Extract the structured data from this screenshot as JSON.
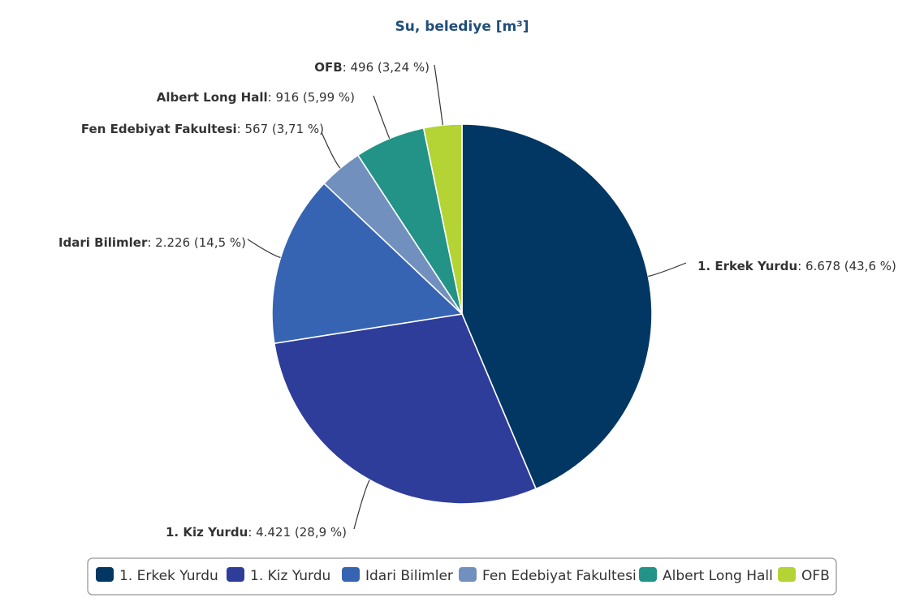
{
  "chart_data": {
    "type": "pie",
    "title": "Su, belediye [m³]",
    "slices": [
      {
        "name": "1. Erkek Yurdu",
        "value": 6678,
        "value_text": "6.678",
        "percent_text": "43,6 %",
        "color": "#023764"
      },
      {
        "name": "1. Kiz Yurdu",
        "value": 4421,
        "value_text": "4.421",
        "percent_text": "28,9 %",
        "color": "#2e3d9a"
      },
      {
        "name": "Idari Bilimler",
        "value": 2226,
        "value_text": "2.226",
        "percent_text": "14,5 %",
        "color": "#3763b3"
      },
      {
        "name": "Fen Edebiyat Fakultesi",
        "value": 567,
        "value_text": "567",
        "percent_text": "3,71 %",
        "color": "#7190bd"
      },
      {
        "name": "Albert Long Hall",
        "value": 916,
        "value_text": "916",
        "percent_text": "5,99 %",
        "color": "#229386"
      },
      {
        "name": "OFB",
        "value": 496,
        "value_text": "496",
        "percent_text": "3,24 %",
        "color": "#b4d334"
      }
    ],
    "legend_position": "bottom"
  }
}
